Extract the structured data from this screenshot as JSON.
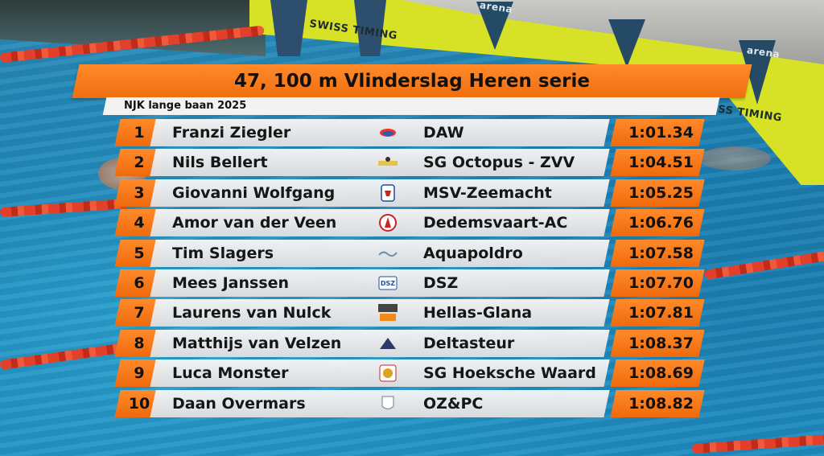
{
  "event_title": "47, 100 m Vlinderslag Heren serie",
  "meet_name": "NJK lange baan 2025",
  "background": {
    "sponsor_texts": [
      "SWISS TIMING",
      "arena",
      "SWISS TIMING",
      "arena"
    ]
  },
  "results": [
    {
      "rank": "1",
      "name": "Franzi Ziegler",
      "club": "DAW",
      "time": "1:01.34",
      "logo_icon": "daw-club-logo-icon"
    },
    {
      "rank": "2",
      "name": "Nils Bellert",
      "club": "SG Octopus - ZVV",
      "time": "1:04.51",
      "logo_icon": "octopus-club-logo-icon"
    },
    {
      "rank": "3",
      "name": "Giovanni Wolfgang",
      "club": "MSV-Zeemacht",
      "time": "1:05.25",
      "logo_icon": "zeemacht-club-logo-icon"
    },
    {
      "rank": "4",
      "name": "Amor van der Veen",
      "club": "Dedemsvaart-AC",
      "time": "1:06.76",
      "logo_icon": "dedemsvaart-club-logo-icon"
    },
    {
      "rank": "5",
      "name": "Tim Slagers",
      "club": "Aquapoldro",
      "time": "1:07.58",
      "logo_icon": "aquapoldro-club-logo-icon"
    },
    {
      "rank": "6",
      "name": "Mees Janssen",
      "club": "DSZ",
      "time": "1:07.70",
      "logo_icon": "dsz-club-logo-icon"
    },
    {
      "rank": "7",
      "name": "Laurens van Nulck",
      "club": "Hellas-Glana",
      "time": "1:07.81",
      "logo_icon": "swim-team-club-logo-icon"
    },
    {
      "rank": "8",
      "name": "Matthijs van Velzen",
      "club": "Deltasteur",
      "time": "1:08.37",
      "logo_icon": "deltasteur-club-logo-icon"
    },
    {
      "rank": "9",
      "name": "Luca Monster",
      "club": "SG Hoeksche Waard",
      "time": "1:08.69",
      "logo_icon": "hoeksche-waard-club-logo-icon"
    },
    {
      "rank": "10",
      "name": "Daan Overmars",
      "club": "OZ&PC",
      "time": "1:08.82",
      "logo_icon": "ozpc-club-logo-icon"
    }
  ],
  "colors": {
    "accent_orange": "#f47a1a",
    "row_panel": "#eeeeee",
    "pool_blue": "#1e84b8",
    "lane_rope_red": "#e3402c",
    "wall_yellow": "#d7e226"
  }
}
